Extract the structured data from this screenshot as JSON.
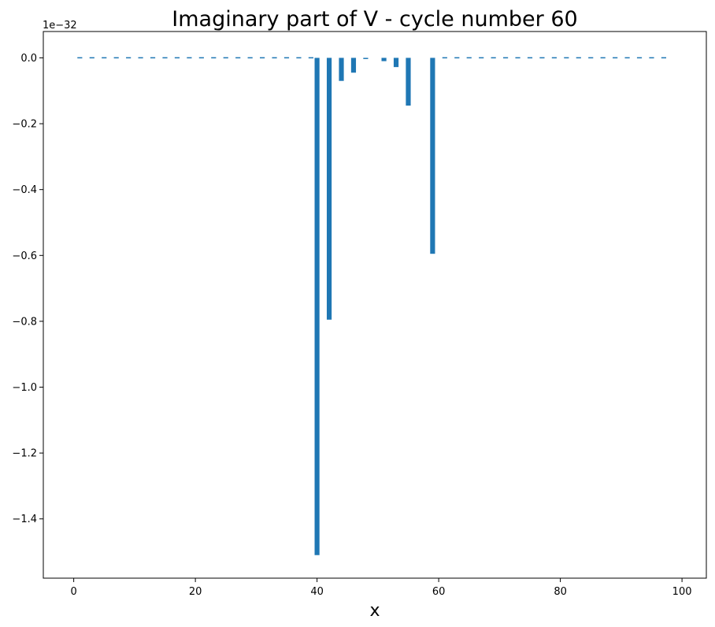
{
  "chart_data": {
    "type": "bar",
    "title": "Imaginary part of V - cycle number 60",
    "xlabel": "x",
    "ylabel": "",
    "y_offset_text": "1e−32",
    "y_scale_exponent": -32,
    "xlim": [
      -5,
      104
    ],
    "ylim": [
      -1.58,
      0.08
    ],
    "x_ticks": [
      0,
      20,
      40,
      60,
      80,
      100
    ],
    "x_tick_labels": [
      "0",
      "20",
      "40",
      "60",
      "80",
      "100"
    ],
    "y_ticks": [
      0.0,
      -0.2,
      -0.4,
      -0.6,
      -0.8,
      -1.0,
      -1.2,
      -1.4
    ],
    "y_tick_labels": [
      "0.0",
      "−0.2",
      "−0.4",
      "−0.6",
      "−0.8",
      "−1.0",
      "−1.2",
      "−1.4"
    ],
    "bar_width": 0.8,
    "grid": false,
    "series": [
      {
        "color": "#1f77b4",
        "x": [
          1,
          3,
          5,
          7,
          9,
          11,
          13,
          15,
          17,
          19,
          21,
          23,
          25,
          27,
          29,
          31,
          33,
          35,
          37,
          39,
          40,
          42,
          44,
          46,
          48,
          51,
          53,
          55,
          59,
          61,
          63,
          65,
          67,
          69,
          71,
          73,
          75,
          77,
          79,
          81,
          83,
          85,
          87,
          89,
          91,
          93,
          95,
          97
        ],
        "values": [
          0.002,
          0.002,
          0.002,
          0.002,
          0.002,
          0.002,
          0.002,
          0.002,
          0.002,
          0.002,
          0.002,
          0.002,
          0.002,
          0.002,
          0.002,
          0.002,
          0.002,
          0.002,
          0.002,
          0.002,
          -1.51,
          -0.795,
          -0.07,
          -0.045,
          -0.003,
          -0.01,
          -0.028,
          -0.145,
          -0.595,
          0.002,
          0.002,
          0.002,
          0.002,
          0.002,
          0.002,
          0.002,
          0.002,
          0.002,
          0.002,
          0.002,
          0.002,
          0.002,
          0.002,
          0.002,
          0.002,
          0.002,
          0.002,
          0.002
        ]
      }
    ]
  }
}
